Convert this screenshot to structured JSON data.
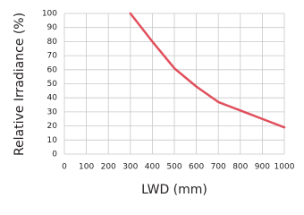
{
  "chart_data": {
    "type": "line",
    "x_label": "LWD (mm)",
    "y_label": "Relative Irradiance (%)",
    "x": [
      300,
      400,
      500,
      600,
      700,
      800,
      900,
      1000
    ],
    "series": [
      {
        "color": "#e0505c",
        "values": [
          100,
          80,
          61,
          48,
          37,
          31,
          25,
          19
        ]
      }
    ],
    "xlim": [
      0,
      1000
    ],
    "xticks": [
      0,
      100,
      200,
      300,
      400,
      500,
      600,
      700,
      800,
      900,
      1000
    ],
    "ylim": [
      0,
      100
    ],
    "yticks": [
      0,
      10,
      20,
      30,
      40,
      50,
      60,
      70,
      80,
      90,
      100
    ],
    "grid": true
  }
}
